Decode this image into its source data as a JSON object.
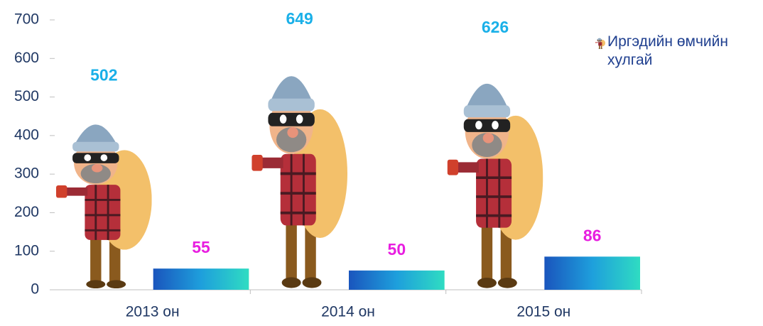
{
  "chart_data": {
    "type": "bar",
    "categories": [
      "2013 он",
      "2014 он",
      "2015 он"
    ],
    "series": [
      {
        "name": "Иргэдийн өмчийн хулгай",
        "color": "#1ab0e8",
        "values": [
          502,
          649,
          626
        ]
      },
      {
        "color": "#e81ee0",
        "values": [
          55,
          50,
          86
        ]
      }
    ],
    "ylim": [
      0,
      700
    ],
    "yticks": [
      0,
      100,
      200,
      300,
      400,
      500,
      600,
      700
    ],
    "legend": "right"
  }
}
